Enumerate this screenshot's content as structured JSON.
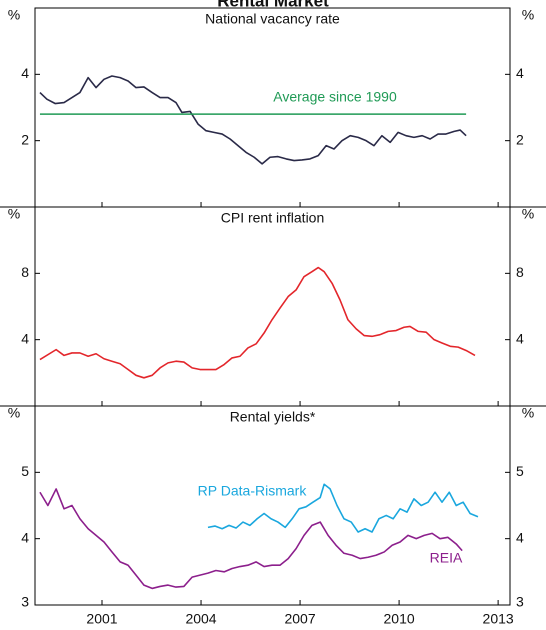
{
  "title": "Rental Market",
  "chart_data": [
    {
      "type": "line",
      "title": "National vacancy rate",
      "ylabel": "%",
      "xlim": [
        1998.97,
        2013.36
      ],
      "ylim": [
        0,
        6
      ],
      "yticks": [
        2,
        4
      ],
      "series": [
        {
          "color": "#2a2a48",
          "x": [
            1999.12,
            1999.33,
            1999.58,
            1999.85,
            2000.09,
            2000.33,
            2000.58,
            2000.82,
            2001.06,
            2001.3,
            2001.55,
            2001.79,
            2002.03,
            2002.27,
            2002.52,
            2002.76,
            2003.0,
            2003.24,
            2003.42,
            2003.67,
            2003.91,
            2004.15,
            2004.39,
            2004.64,
            2004.88,
            2005.12,
            2005.36,
            2005.61,
            2005.85,
            2006.09,
            2006.33,
            2006.58,
            2006.82,
            2007.06,
            2007.3,
            2007.55,
            2007.79,
            2008.03,
            2008.27,
            2008.52,
            2008.76,
            2009.0,
            2009.24,
            2009.48,
            2009.73,
            2009.97,
            2010.21,
            2010.45,
            2010.7,
            2010.94,
            2011.18,
            2011.42,
            2011.67,
            2011.85,
            2012.03
          ],
          "values": [
            3.45,
            3.25,
            3.12,
            3.15,
            3.3,
            3.45,
            3.9,
            3.6,
            3.85,
            3.95,
            3.9,
            3.8,
            3.6,
            3.62,
            3.45,
            3.3,
            3.3,
            3.15,
            2.85,
            2.88,
            2.5,
            2.3,
            2.25,
            2.2,
            2.05,
            1.85,
            1.65,
            1.5,
            1.3,
            1.5,
            1.52,
            1.45,
            1.4,
            1.42,
            1.45,
            1.55,
            1.85,
            1.75,
            2.0,
            2.15,
            2.1,
            2.0,
            1.85,
            2.15,
            1.95,
            2.25,
            2.15,
            2.1,
            2.15,
            2.05,
            2.2,
            2.2,
            2.28,
            2.32,
            2.15
          ]
        },
        {
          "name": "Average since 1990",
          "color": "#1f9a55",
          "x": [
            1999.12,
            2012.03
          ],
          "values": [
            2.8,
            2.8
          ]
        }
      ]
    },
    {
      "type": "line",
      "title": "CPI rent inflation",
      "ylabel": "%",
      "xlim": [
        1998.97,
        2013.36
      ],
      "ylim": [
        0,
        12
      ],
      "yticks": [
        4,
        8
      ],
      "series": [
        {
          "color": "#e3262b",
          "x": [
            1999.12,
            1999.61,
            1999.85,
            2000.09,
            2000.33,
            2000.58,
            2000.82,
            2001.06,
            2001.3,
            2001.55,
            2001.79,
            2002.03,
            2002.27,
            2002.52,
            2002.76,
            2003.0,
            2003.24,
            2003.48,
            2003.73,
            2003.97,
            2004.21,
            2004.45,
            2004.7,
            2004.94,
            2005.18,
            2005.42,
            2005.67,
            2005.91,
            2006.15,
            2006.39,
            2006.64,
            2006.88,
            2007.12,
            2007.36,
            2007.55,
            2007.73,
            2007.97,
            2008.21,
            2008.45,
            2008.7,
            2008.94,
            2009.18,
            2009.42,
            2009.67,
            2009.91,
            2010.15,
            2010.33,
            2010.58,
            2010.82,
            2011.06,
            2011.3,
            2011.55,
            2011.79,
            2012.03,
            2012.3
          ],
          "values": [
            2.8,
            3.4,
            3.05,
            3.2,
            3.2,
            3.0,
            3.15,
            2.85,
            2.7,
            2.55,
            2.2,
            1.85,
            1.7,
            1.85,
            2.3,
            2.6,
            2.7,
            2.65,
            2.3,
            2.2,
            2.2,
            2.2,
            2.5,
            2.9,
            3.0,
            3.5,
            3.75,
            4.4,
            5.2,
            5.9,
            6.6,
            7.0,
            7.8,
            8.1,
            8.35,
            8.1,
            7.4,
            6.4,
            5.2,
            4.65,
            4.25,
            4.2,
            4.3,
            4.5,
            4.55,
            4.75,
            4.8,
            4.5,
            4.45,
            4.0,
            3.8,
            3.6,
            3.55,
            3.35,
            3.05
          ]
        }
      ]
    },
    {
      "type": "line",
      "title": "Rental yields*",
      "ylabel": "%",
      "xlim": [
        1998.97,
        2013.36
      ],
      "ylim": [
        3,
        6
      ],
      "yticks": [
        3,
        4,
        5
      ],
      "xticks": [
        2001,
        2004,
        2007,
        2010,
        2013
      ],
      "series": [
        {
          "name": "RP Data-Rismark",
          "color": "#1aa7de",
          "x": [
            2004.21,
            2004.42,
            2004.64,
            2004.85,
            2005.06,
            2005.27,
            2005.48,
            2005.7,
            2005.91,
            2006.12,
            2006.33,
            2006.55,
            2006.76,
            2006.97,
            2007.18,
            2007.39,
            2007.61,
            2007.73,
            2007.91,
            2008.12,
            2008.33,
            2008.55,
            2008.76,
            2008.97,
            2009.18,
            2009.39,
            2009.61,
            2009.82,
            2010.03,
            2010.24,
            2010.45,
            2010.67,
            2010.88,
            2011.09,
            2011.3,
            2011.52,
            2011.73,
            2011.94,
            2012.15,
            2012.39
          ],
          "values": [
            4.17,
            4.19,
            4.15,
            4.2,
            4.16,
            4.25,
            4.2,
            4.3,
            4.38,
            4.3,
            4.25,
            4.17,
            4.3,
            4.45,
            4.48,
            4.55,
            4.62,
            4.82,
            4.75,
            4.5,
            4.3,
            4.25,
            4.1,
            4.15,
            4.1,
            4.3,
            4.35,
            4.3,
            4.45,
            4.4,
            4.6,
            4.5,
            4.55,
            4.7,
            4.55,
            4.7,
            4.5,
            4.55,
            4.38,
            4.33
          ]
        },
        {
          "name": "REIA",
          "color": "#8c1f8c",
          "x": [
            1999.12,
            1999.36,
            1999.61,
            1999.85,
            2000.09,
            2000.33,
            2000.58,
            2000.82,
            2001.06,
            2001.3,
            2001.55,
            2001.79,
            2002.03,
            2002.27,
            2002.52,
            2002.76,
            2003.0,
            2003.24,
            2003.48,
            2003.73,
            2003.97,
            2004.21,
            2004.45,
            2004.7,
            2004.94,
            2005.18,
            2005.42,
            2005.67,
            2005.91,
            2006.15,
            2006.39,
            2006.64,
            2006.88,
            2007.12,
            2007.36,
            2007.61,
            2007.85,
            2008.09,
            2008.33,
            2008.58,
            2008.82,
            2009.06,
            2009.3,
            2009.55,
            2009.79,
            2010.03,
            2010.27,
            2010.52,
            2010.76,
            2011.0,
            2011.24,
            2011.48,
            2011.73,
            2011.91
          ],
          "values": [
            4.7,
            4.5,
            4.75,
            4.45,
            4.5,
            4.3,
            4.15,
            4.05,
            3.95,
            3.8,
            3.65,
            3.6,
            3.45,
            3.3,
            3.25,
            3.28,
            3.3,
            3.27,
            3.28,
            3.42,
            3.45,
            3.48,
            3.52,
            3.5,
            3.55,
            3.58,
            3.6,
            3.65,
            3.58,
            3.6,
            3.6,
            3.7,
            3.85,
            4.05,
            4.2,
            4.25,
            4.05,
            3.9,
            3.78,
            3.75,
            3.7,
            3.72,
            3.75,
            3.8,
            3.9,
            3.95,
            4.05,
            4.0,
            4.05,
            4.08,
            4.0,
            4.02,
            3.92,
            3.82
          ]
        }
      ]
    }
  ]
}
